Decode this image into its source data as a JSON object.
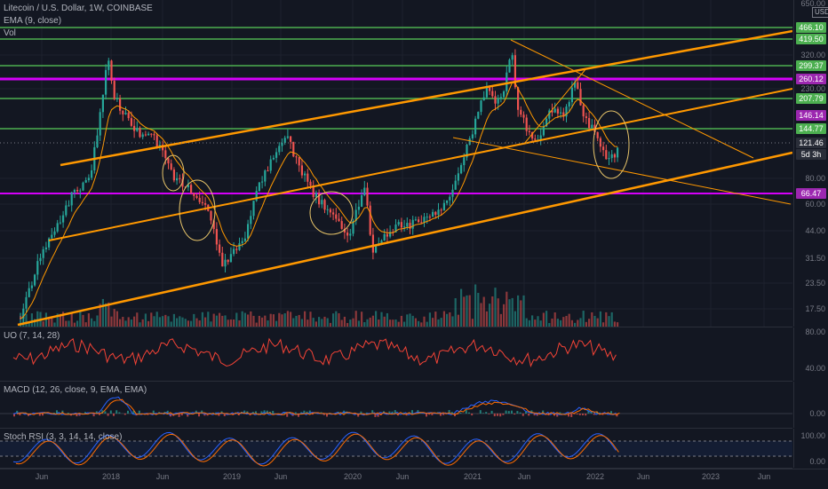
{
  "header": {
    "symbol_line": "Litecoin / U.S. Dollar, 1W, COINBASE",
    "ema_line": "EMA (9, close)",
    "vol_line": "Vol"
  },
  "currency_button": "USD",
  "price_axis_ticks": [
    "650.00",
    "320.00",
    "230.00",
    "80.00",
    "60.00",
    "44.00",
    "31.50",
    "23.50",
    "17.50"
  ],
  "price_tags": [
    {
      "label": "466.10",
      "color": "#4caf50"
    },
    {
      "label": "419.50",
      "color": "#4caf50"
    },
    {
      "label": "299.37",
      "color": "#4caf50"
    },
    {
      "label": "260.12",
      "color": "#9c27b0"
    },
    {
      "label": "207.79",
      "color": "#4caf50"
    },
    {
      "label": "146.14",
      "color": "#9c27b0"
    },
    {
      "label": "144.77",
      "color": "#4caf50"
    },
    {
      "label": "121.46",
      "color": "#2a2e39"
    },
    {
      "label": "5d 3h",
      "color": "#2a2e39"
    },
    {
      "label": "66.47",
      "color": "#9c27b0"
    }
  ],
  "indicators": {
    "uo": {
      "legend": "UO (7, 14, 28)",
      "ticks": [
        "80.00",
        "40.00"
      ]
    },
    "macd": {
      "legend": "MACD (12, 26, close, 9, EMA, EMA)",
      "ticks": [
        "0.00"
      ]
    },
    "stoch": {
      "legend": "Stoch RSI (3, 3, 14, 14, close)",
      "ticks": [
        "100.00",
        "0.00"
      ]
    }
  },
  "time_axis": [
    "Jun",
    "2018",
    "Jun",
    "2019",
    "Jun",
    "2020",
    "Jun",
    "2021",
    "Jun",
    "2022",
    "Jun",
    "2023",
    "Jun"
  ],
  "colors": {
    "up": "#26a69a",
    "down": "#ef5350",
    "ema": "#ff9800",
    "channel": "#ff9800",
    "support_green": "#4caf50",
    "support_magenta": "#d500f9",
    "uo_line": "#f44336",
    "macd_line": "#2962ff",
    "signal_line": "#ff6d00",
    "stoch_k": "#2962ff",
    "stoch_d": "#ff6d00"
  }
}
